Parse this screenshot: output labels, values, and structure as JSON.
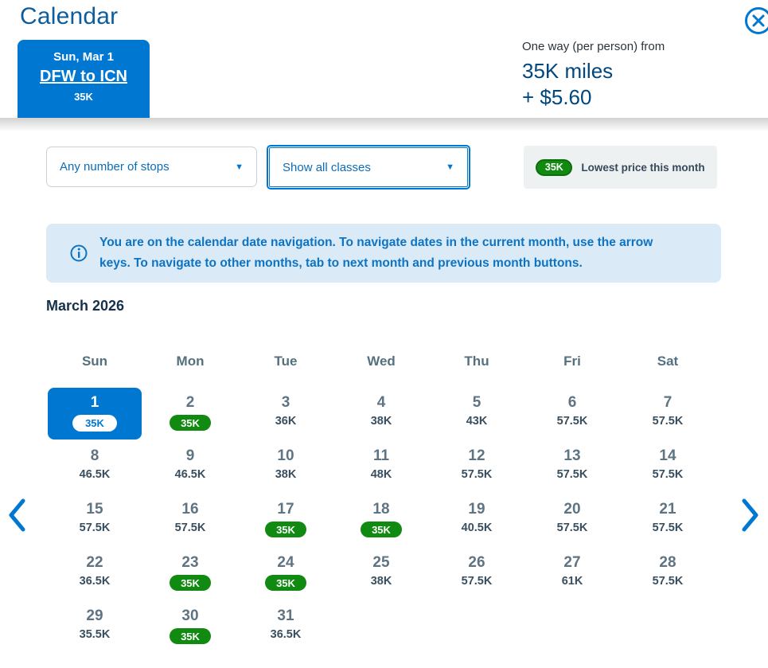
{
  "header": {
    "title": "Calendar",
    "close": "close-dialog"
  },
  "trip_tab": {
    "date": "Sun, Mar 1",
    "route": "DFW to ICN",
    "price": "35K"
  },
  "price_summary": {
    "label": "One way (per person) from",
    "miles": "35K miles",
    "taxes": "+ $5.60"
  },
  "filters": {
    "stops_value": "Any number of stops",
    "classes_value": "Show all classes",
    "caret": "▼"
  },
  "legend": {
    "badge": "35K",
    "label": "Lowest price this month"
  },
  "info_banner": {
    "text": "You are on the calendar date navigation. To navigate dates in the current month, use the arrow keys. To navigate to other months, tab to next month and previous month buttons."
  },
  "calendar": {
    "month": "March 2026",
    "weekdays": [
      "Sun",
      "Mon",
      "Tue",
      "Wed",
      "Thu",
      "Fri",
      "Sat"
    ],
    "days": [
      {
        "day": 1,
        "price": "35K",
        "state": "selected"
      },
      {
        "day": 2,
        "price": "35K",
        "state": "lowest"
      },
      {
        "day": 3,
        "price": "36K",
        "state": "normal"
      },
      {
        "day": 4,
        "price": "38K",
        "state": "normal"
      },
      {
        "day": 5,
        "price": "43K",
        "state": "normal"
      },
      {
        "day": 6,
        "price": "57.5K",
        "state": "normal"
      },
      {
        "day": 7,
        "price": "57.5K",
        "state": "normal"
      },
      {
        "day": 8,
        "price": "46.5K",
        "state": "normal"
      },
      {
        "day": 9,
        "price": "46.5K",
        "state": "normal"
      },
      {
        "day": 10,
        "price": "38K",
        "state": "normal"
      },
      {
        "day": 11,
        "price": "48K",
        "state": "normal"
      },
      {
        "day": 12,
        "price": "57.5K",
        "state": "normal"
      },
      {
        "day": 13,
        "price": "57.5K",
        "state": "normal"
      },
      {
        "day": 14,
        "price": "57.5K",
        "state": "normal"
      },
      {
        "day": 15,
        "price": "57.5K",
        "state": "normal"
      },
      {
        "day": 16,
        "price": "57.5K",
        "state": "normal"
      },
      {
        "day": 17,
        "price": "35K",
        "state": "lowest"
      },
      {
        "day": 18,
        "price": "35K",
        "state": "lowest"
      },
      {
        "day": 19,
        "price": "40.5K",
        "state": "normal"
      },
      {
        "day": 20,
        "price": "57.5K",
        "state": "normal"
      },
      {
        "day": 21,
        "price": "57.5K",
        "state": "normal"
      },
      {
        "day": 22,
        "price": "36.5K",
        "state": "normal"
      },
      {
        "day": 23,
        "price": "35K",
        "state": "lowest"
      },
      {
        "day": 24,
        "price": "35K",
        "state": "lowest"
      },
      {
        "day": 25,
        "price": "38K",
        "state": "normal"
      },
      {
        "day": 26,
        "price": "57.5K",
        "state": "normal"
      },
      {
        "day": 27,
        "price": "61K",
        "state": "normal"
      },
      {
        "day": 28,
        "price": "57.5K",
        "state": "normal"
      },
      {
        "day": 29,
        "price": "35.5K",
        "state": "normal"
      },
      {
        "day": 30,
        "price": "35K",
        "state": "lowest"
      },
      {
        "day": 31,
        "price": "36.5K",
        "state": "normal"
      }
    ]
  },
  "colors": {
    "brand_blue": "#0078d2",
    "dark_blue": "#00467f",
    "lowest_green": "#118a11",
    "banner_blue_bg": "#daeaf7",
    "legend_gray_bg": "#eef1f2"
  }
}
